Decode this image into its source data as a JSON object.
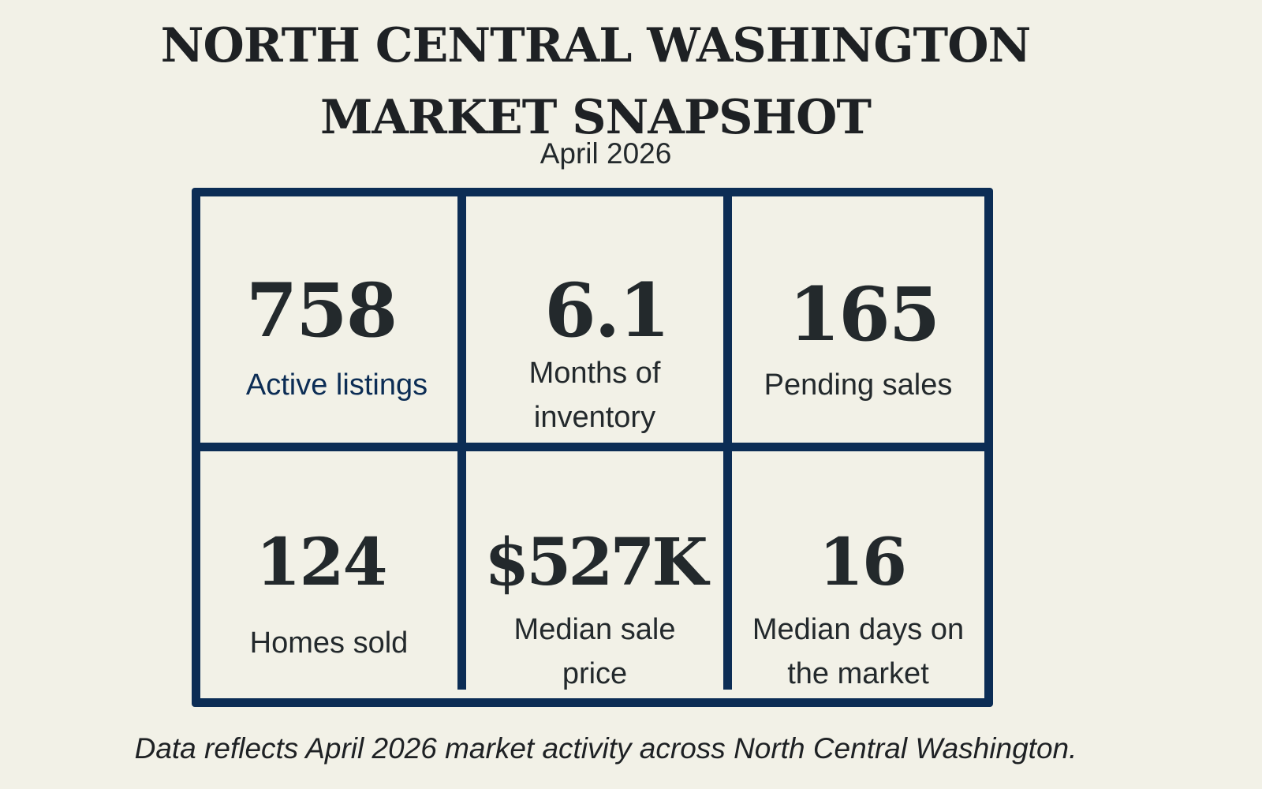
{
  "header": {
    "title_line_1": "NORTH CENTRAL WASHINGTON",
    "title_line_2": "MARKET SNAPSHOT",
    "period": "April 2026"
  },
  "stats": [
    {
      "value": "758",
      "label": "Active listings"
    },
    {
      "value": "6.1",
      "label": "Months of inventory"
    },
    {
      "value": "165",
      "label": "Pending sales"
    },
    {
      "value": "124",
      "label": "Homes sold"
    },
    {
      "value": "$527K",
      "label": "Median sale price"
    },
    {
      "value": "16",
      "label": "Median days on the market"
    }
  ],
  "colors": {
    "background": "#f2f1e7",
    "grid_border": "#0c2d55",
    "accent_label": "#0c2d55",
    "text": "#23292c"
  },
  "footer": {
    "note": "Data reflects April 2026 market activity across North Central Washington."
  }
}
